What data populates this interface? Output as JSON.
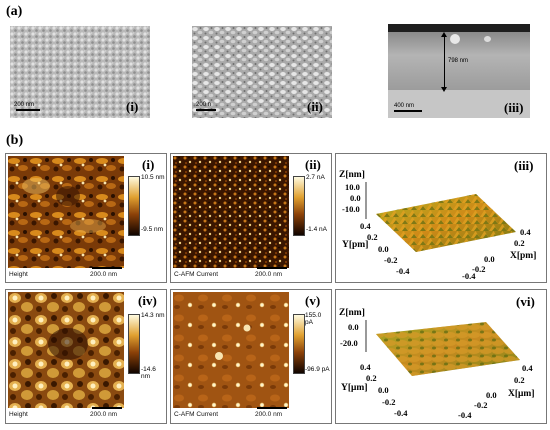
{
  "sections": {
    "a": "(a)",
    "b": "(b)"
  },
  "sem": [
    {
      "roman": "(i)",
      "scale": "200 nm"
    },
    {
      "roman": "(ii)",
      "scale": "200 n"
    },
    {
      "roman": "(iii)",
      "scale": "400 nm",
      "thickness": "798 nm"
    }
  ],
  "afm": [
    {
      "roman": "(i)",
      "caption": "Height",
      "scale": "200.0 nm",
      "cb_max": "10.5 nm",
      "cb_min": "-9.5 nm"
    },
    {
      "roman": "(ii)",
      "caption": "C-AFM Current",
      "scale": "200.0 nm",
      "cb_max": "2.7 nA",
      "cb_min": "-1.4 nA"
    },
    {
      "roman": "(iv)",
      "caption": "Height",
      "scale": "200.0 nm",
      "cb_max": "14.3 nm",
      "cb_min": "-14.6 nm"
    },
    {
      "roman": "(v)",
      "caption": "C-AFM Current",
      "scale": "200.0 nm",
      "cb_max": "155.0 pA",
      "cb_min": "-96.9 pA"
    }
  ],
  "plot3d": [
    {
      "roman": "(iii)",
      "z_label": "Z[nm]",
      "z_ticks": [
        "10.0",
        "0.0",
        "-10.0"
      ],
      "y_label": "Y[pm]",
      "y_ticks": [
        "0.4",
        "0.2",
        "0.0",
        "-0.2",
        "-0.4"
      ],
      "x_label": "X[pm]",
      "x_ticks": [
        "0.4",
        "0.2",
        "0.0",
        "-0.2",
        "-0.4"
      ]
    },
    {
      "roman": "(vi)",
      "z_label": "Z[nm]",
      "z_ticks": [
        "0.0",
        "-20.0"
      ],
      "y_label": "Y[μm]",
      "y_ticks": [
        "0.4",
        "0.2",
        "0.0",
        "-0.2",
        "-0.4"
      ],
      "x_label": "X[μm]",
      "x_ticks": [
        "0.4",
        "0.2",
        "0.0",
        "-0.2",
        "-0.4"
      ]
    }
  ],
  "colors": {
    "afm_dark": "#1a0a00",
    "afm_mid": "#a0520f",
    "afm_light": "#fff8d8",
    "surf_green": "#7a8a1e",
    "surf_orange": "#c47a18"
  }
}
